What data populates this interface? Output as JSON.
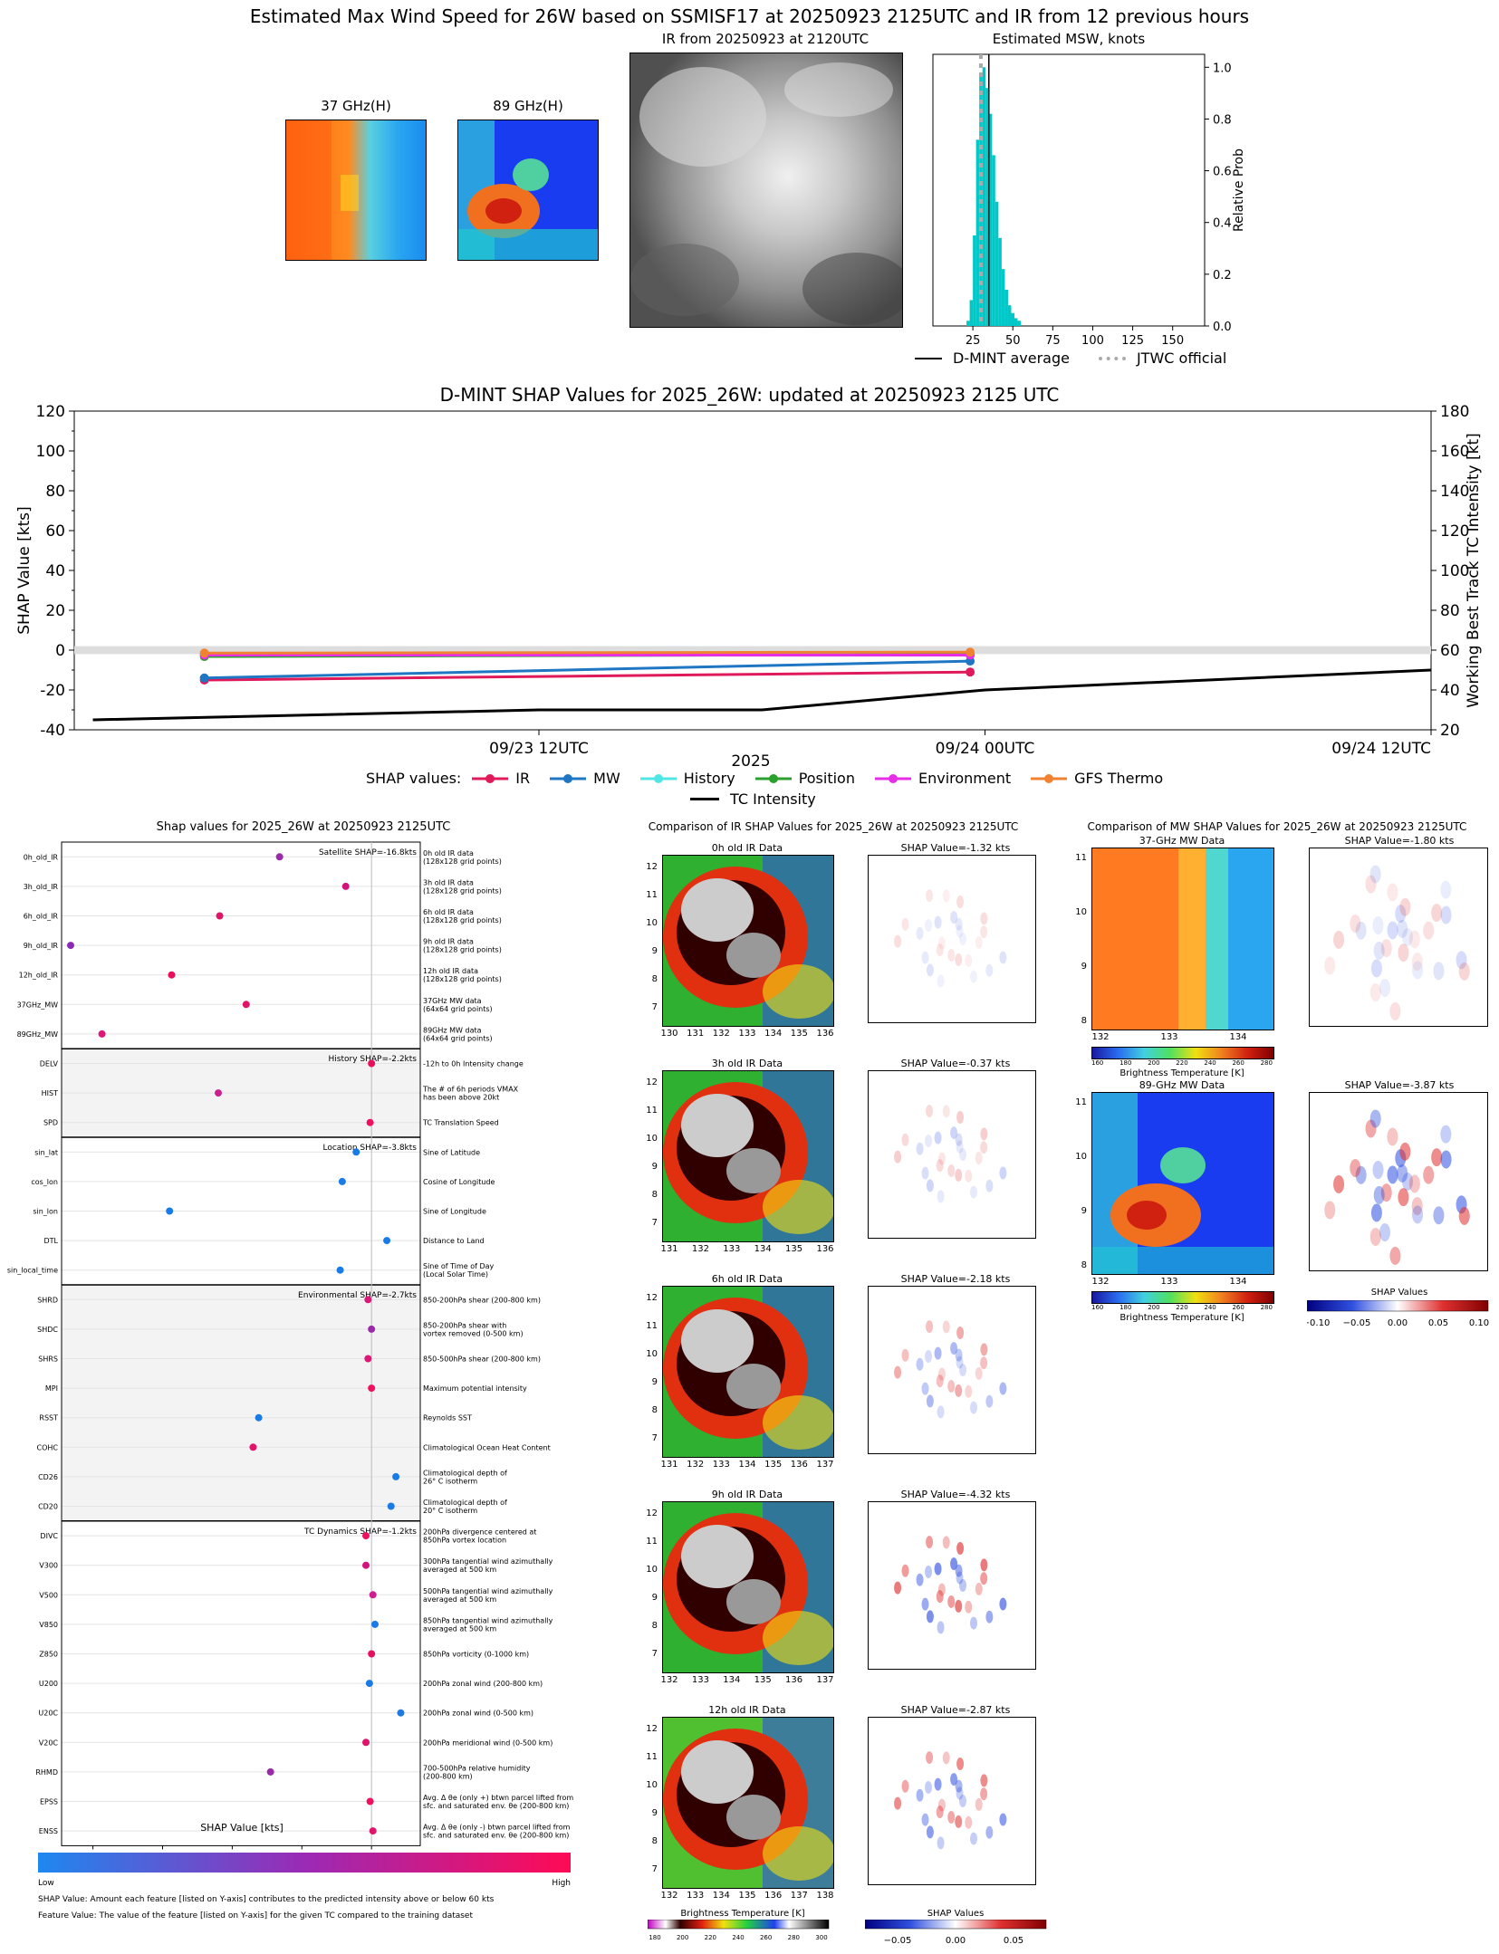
{
  "header": {
    "main_title": "Estimated Max Wind Speed for 26W based on SSMISF17 at 20250923 2125UTC and IR from 12 previous hours",
    "mw37_title": "37 GHz(H)",
    "mw89_title": "89 GHz(H)",
    "ir_title": "IR from 20250923 at 2120UTC",
    "msw_title": "Estimated MSW, knots",
    "msw_ylabel": "Relative Prob",
    "legend_dmint": "D-MINT average",
    "legend_jtwc": "JTWC official"
  },
  "shap_time": {
    "title": "D-MINT SHAP Values for 2025_26W: updated at 20250923 2125 UTC",
    "ylabel_left": "SHAP Value [kts]",
    "ylabel_right": "Working Best Track TC Intensity [kt]",
    "xlabel": "2025",
    "legend_title": "SHAP values:",
    "legend_tc": "TC Intensity"
  },
  "shap_dot": {
    "title": "Shap values for 2025_26W at 20250923 2125UTC",
    "xlabel": "SHAP Value [kts]",
    "cbar_low": "Low",
    "cbar_high": "High",
    "footer1": "SHAP Value: Amount each feature [listed on Y-axis] contributes to the predicted intensity above or below 60 kts",
    "footer2": "Feature Value: The value of the feature [listed on Y-axis] for the given TC compared to the training dataset",
    "groups": [
      {
        "label": "Satellite SHAP=-16.8kts",
        "shaded": false
      },
      {
        "label": "History SHAP=-2.2kts",
        "shaded": true
      },
      {
        "label": "Location SHAP=-3.8kts",
        "shaded": false
      },
      {
        "label": "Environmental SHAP=-2.7kts",
        "shaded": true
      },
      {
        "label": "TC Dynamics SHAP=-1.2kts",
        "shaded": false
      }
    ]
  },
  "ir_comp": {
    "title": "Comparison of IR SHAP Values for 2025_26W at 20250923 2125UTC",
    "rows": [
      {
        "img_title": "0h old IR Data",
        "shap_title": "SHAP Value=-1.32 kts"
      },
      {
        "img_title": "3h old IR Data",
        "shap_title": "SHAP Value=-0.37 kts"
      },
      {
        "img_title": "6h old IR Data",
        "shap_title": "SHAP Value=-2.18 kts"
      },
      {
        "img_title": "9h old IR Data",
        "shap_title": "SHAP Value=-4.32 kts"
      },
      {
        "img_title": "12h old IR Data",
        "shap_title": "SHAP Value=-2.87 kts"
      }
    ],
    "cbar_bt_label": "Brightness Temperature [K]",
    "cbar_shap_label": "SHAP Values"
  },
  "mw_comp": {
    "title": "Comparison of MW SHAP Values for 2025_26W at 20250923 2125UTC",
    "rows": [
      {
        "img_title": "37-GHz MW Data",
        "shap_title": "SHAP Value=-1.80 kts"
      },
      {
        "img_title": "89-GHz MW Data",
        "shap_title": "SHAP Value=-3.87 kts"
      }
    ],
    "cbar_bt_label": "Brightness Temperature [K]",
    "cbar_shap_label": "SHAP Values"
  },
  "chart_data": [
    {
      "type": "bar",
      "title": "Estimated MSW, knots",
      "ylabel": "Relative Prob",
      "xlim": [
        0,
        170
      ],
      "ylim": [
        0,
        1.05
      ],
      "xticks": [
        25,
        50,
        75,
        100,
        125,
        150
      ],
      "yticks": [
        0.0,
        0.2,
        0.4,
        0.6,
        0.8,
        1.0
      ],
      "bins": [
        {
          "x": 22,
          "value": 0.02
        },
        {
          "x": 24,
          "value": 0.1
        },
        {
          "x": 26,
          "value": 0.35
        },
        {
          "x": 28,
          "value": 0.72
        },
        {
          "x": 30,
          "value": 0.98
        },
        {
          "x": 32,
          "value": 1.0
        },
        {
          "x": 34,
          "value": 0.92
        },
        {
          "x": 36,
          "value": 0.82
        },
        {
          "x": 38,
          "value": 0.66
        },
        {
          "x": 40,
          "value": 0.48
        },
        {
          "x": 42,
          "value": 0.34
        },
        {
          "x": 44,
          "value": 0.22
        },
        {
          "x": 46,
          "value": 0.14
        },
        {
          "x": 48,
          "value": 0.08
        },
        {
          "x": 50,
          "value": 0.05
        },
        {
          "x": 52,
          "value": 0.03
        },
        {
          "x": 54,
          "value": 0.02
        }
      ],
      "dmint_average": 35,
      "jtwc_official": 30,
      "series_color": "#00c8c8"
    },
    {
      "type": "line",
      "title": "D-MINT SHAP Values for 2025_26W: updated at 20250923 2125 UTC",
      "ylabel": "SHAP Value [kts]",
      "ylabel_right": "Working Best Track TC Intensity [kt]",
      "xlabel": "2025",
      "ylim": [
        -40,
        120
      ],
      "ylim_right": [
        20,
        180
      ],
      "yticks": [
        -40,
        -20,
        0,
        20,
        40,
        60,
        80,
        100,
        120
      ],
      "yticks_right": [
        20,
        40,
        60,
        80,
        100,
        120,
        140,
        160,
        180
      ],
      "x_range_hours": [
        -12.5,
        12
      ],
      "xticks": [
        {
          "h": -12,
          "label": "09/23 12UTC"
        },
        {
          "h": 0,
          "label": "09/24 00UTC"
        },
        {
          "h": 12,
          "label": "09/24 12UTC"
        }
      ],
      "series": [
        {
          "name": "IR",
          "color": "#e0195a",
          "points": [
            [
              -21,
              -15
            ],
            [
              -0.4,
              -11
            ]
          ]
        },
        {
          "name": "MW",
          "color": "#1f77c4",
          "points": [
            [
              -21,
              -14
            ],
            [
              -0.4,
              -5.5
            ]
          ]
        },
        {
          "name": "History",
          "color": "#50e6e6",
          "points": [
            [
              -21,
              -2.2
            ],
            [
              -0.4,
              -2.0
            ]
          ]
        },
        {
          "name": "Position",
          "color": "#2ca02c",
          "points": [
            [
              -21,
              -3.2
            ],
            [
              -0.4,
              -2.2
            ]
          ]
        },
        {
          "name": "Environment",
          "color": "#e62ee6",
          "points": [
            [
              -21,
              -2.5
            ],
            [
              -0.4,
              -2.5
            ]
          ]
        },
        {
          "name": "GFS Thermo",
          "color": "#f08232",
          "points": [
            [
              -21,
              -1.5
            ],
            [
              -0.4,
              -1.0
            ]
          ]
        }
      ],
      "tc_intensity": {
        "name": "TC Intensity",
        "color": "#000000",
        "points": [
          [
            -24,
            25
          ],
          [
            -12,
            30
          ],
          [
            -6,
            30
          ],
          [
            0,
            40
          ],
          [
            12,
            50
          ]
        ]
      },
      "zero_band": [
        -2,
        2
      ]
    },
    {
      "type": "scatter",
      "title": "Shap values for 2025_26W at 20250923 2125UTC",
      "xlabel": "SHAP Value [kts]",
      "xlim": [
        -4.45,
        0.7
      ],
      "xticks": [
        -4,
        -3,
        -2,
        -1,
        0
      ],
      "features": [
        {
          "name": "0h_old_IR",
          "desc": "0h old IR data\n(128x128 grid points)",
          "shap": -1.32,
          "color": "#9b2aaa"
        },
        {
          "name": "3h_old_IR",
          "desc": "3h old IR data\n(128x128 grid points)",
          "shap": -0.37,
          "color": "#d0157d"
        },
        {
          "name": "6h_old_IR",
          "desc": "6h old IR data\n(128x128 grid points)",
          "shap": -2.18,
          "color": "#e0156a"
        },
        {
          "name": "9h_old_IR",
          "desc": "9h old IR data\n(128x128 grid points)",
          "shap": -4.32,
          "color": "#8a2ab5"
        },
        {
          "name": "12h_old_IR",
          "desc": "12h old IR data\n(128x128 grid points)",
          "shap": -2.87,
          "color": "#e8105e"
        },
        {
          "name": "37GHz_MW",
          "desc": "37GHz MW data\n(64x64 grid points)",
          "shap": -1.8,
          "color": "#e0156a"
        },
        {
          "name": "89GHz_MW",
          "desc": "89GHz MW data\n(64x64 grid points)",
          "shap": -3.87,
          "color": "#e0157a"
        },
        {
          "name": "DELV",
          "desc": "-12h to 0h Intensity change",
          "shap": 0.0,
          "color": "#e8105e"
        },
        {
          "name": "HIST",
          "desc": "The # of 6h periods VMAX\nhas been above 20kt",
          "shap": -2.2,
          "color": "#cc2090"
        },
        {
          "name": "SPD",
          "desc": "TC Translation Speed",
          "shap": -0.02,
          "color": "#f01060"
        },
        {
          "name": "sin_lat",
          "desc": "Sine of Latitude",
          "shap": -0.22,
          "color": "#1a7ae6"
        },
        {
          "name": "cos_lon",
          "desc": "Cosine of Longitude",
          "shap": -0.42,
          "color": "#1a7ae6"
        },
        {
          "name": "sin_lon",
          "desc": "Sine of Longitude",
          "shap": -2.9,
          "color": "#1a7ae6"
        },
        {
          "name": "DTL",
          "desc": "Distance to Land",
          "shap": 0.22,
          "color": "#1a7ae6"
        },
        {
          "name": "sin_local_time",
          "desc": "Sine of Time of Day\n(Local Solar Time)",
          "shap": -0.45,
          "color": "#1a7ae6"
        },
        {
          "name": "SHRD",
          "desc": "850-200hPa shear (200-800 km)",
          "shap": -0.05,
          "color": "#e0157a"
        },
        {
          "name": "SHDC",
          "desc": "850-200hPa shear with\nvortex removed (0-500 km)",
          "shap": 0.0,
          "color": "#9b2aaa"
        },
        {
          "name": "SHRS",
          "desc": "850-500hPa shear (200-800 km)",
          "shap": -0.05,
          "color": "#e0157a"
        },
        {
          "name": "MPI",
          "desc": "Maximum potential intensity",
          "shap": 0.0,
          "color": "#f01060"
        },
        {
          "name": "RSST",
          "desc": "Reynolds SST",
          "shap": -1.62,
          "color": "#1a7ae6"
        },
        {
          "name": "COHC",
          "desc": "Climatological Ocean Heat Content",
          "shap": -1.7,
          "color": "#e0156a"
        },
        {
          "name": "CD26",
          "desc": "Climatological depth of\n26° C isotherm",
          "shap": 0.35,
          "color": "#1a7ae6"
        },
        {
          "name": "CD20",
          "desc": "Climatological depth of\n20° C isotherm",
          "shap": 0.28,
          "color": "#1a7ae6"
        },
        {
          "name": "DIVC",
          "desc": "200hPa divergence centered at\n850hPa vortex location",
          "shap": -0.08,
          "color": "#f01060"
        },
        {
          "name": "V300",
          "desc": "300hPa tangential wind azimuthally\naveraged at 500 km",
          "shap": -0.08,
          "color": "#d0157d"
        },
        {
          "name": "V500",
          "desc": "500hPa tangential wind azimuthally\naveraged at 500 km",
          "shap": 0.02,
          "color": "#cc2090"
        },
        {
          "name": "V850",
          "desc": "850hPa tangential wind azimuthally\naveraged at 500 km",
          "shap": 0.05,
          "color": "#1a7ae6"
        },
        {
          "name": "Z850",
          "desc": "850hPa vorticity (0-1000 km)",
          "shap": 0.0,
          "color": "#e8105e"
        },
        {
          "name": "U200",
          "desc": "200hPa zonal wind (200-800 km)",
          "shap": -0.03,
          "color": "#1a7ae6"
        },
        {
          "name": "U20C",
          "desc": "200hPa zonal wind (0-500 km)",
          "shap": 0.42,
          "color": "#1a7ae6"
        },
        {
          "name": "V20C",
          "desc": "200hPa meridional wind (0-500 km)",
          "shap": -0.08,
          "color": "#e0156a"
        },
        {
          "name": "RHMD",
          "desc": "700-500hPa relative humidity\n(200-800 km)",
          "shap": -1.45,
          "color": "#9b2aaa"
        },
        {
          "name": "EPSS",
          "desc": "Avg. Δ θe (only +) btwn parcel lifted from\nsfc. and saturated env. θe (200-800 km)",
          "shap": -0.02,
          "color": "#f01060"
        },
        {
          "name": "ENSS",
          "desc": "Avg. Δ θe (only -) btwn parcel lifted from\nsfc. and saturated env. θe (200-800 km)",
          "shap": 0.02,
          "color": "#e0156a"
        }
      ]
    }
  ],
  "axes": {
    "ir_x_ticks": [
      [
        "130",
        "131",
        "132",
        "133",
        "134",
        "135",
        "136"
      ],
      [
        "131",
        "132",
        "133",
        "134",
        "135",
        "136"
      ],
      [
        "131",
        "132",
        "133",
        "134",
        "135",
        "136",
        "137"
      ],
      [
        "132",
        "133",
        "134",
        "135",
        "136",
        "137"
      ],
      [
        "132",
        "133",
        "134",
        "135",
        "136",
        "137",
        "138"
      ]
    ],
    "ir_y_ticks": [
      "12",
      "11",
      "10",
      "9",
      "8",
      "7"
    ],
    "mw_x_ticks": [
      "132",
      "133",
      "134"
    ],
    "mw_y_ticks": [
      "11",
      "10",
      "9",
      "8"
    ],
    "bt_cbar_ticks_ir": [
      "180",
      "200",
      "220",
      "240",
      "260",
      "280",
      "300"
    ],
    "bt_cbar_ticks_mw": [
      "160",
      "180",
      "200",
      "220",
      "240",
      "260",
      "280"
    ],
    "shap_cbar_ticks_ir": [
      "−0.05",
      "0.00",
      "0.05"
    ],
    "shap_cbar_ticks_mw": [
      "−0.10",
      "−0.05",
      "0.00",
      "0.05",
      "0.10"
    ]
  }
}
